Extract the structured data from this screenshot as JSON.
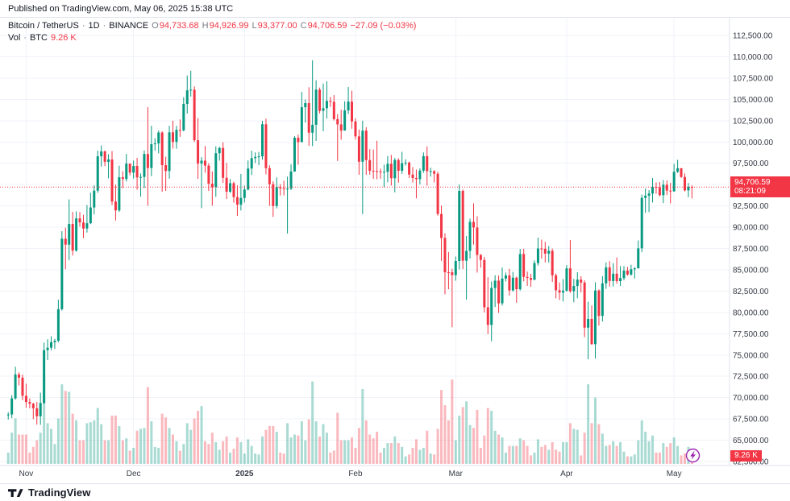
{
  "published_bar": {
    "text": "Published on TradingView.com, May 06, 2025 15:38 UTC"
  },
  "legend": {
    "symbol": "Bitcoin / TetherUS",
    "interval": "1D",
    "exchange": "BINANCE",
    "sep": "·",
    "ohlc": [
      {
        "label": "O",
        "value": "94,733.68"
      },
      {
        "label": "H",
        "value": "94,926.99"
      },
      {
        "label": "L",
        "value": "93,377.00"
      },
      {
        "label": "C",
        "value": "94,706.59"
      }
    ],
    "change": "−27.09 (−0.03%)",
    "vol_label": "Vol",
    "vol_unit": "BTC",
    "vol_value": "9.26 K"
  },
  "price_label": {
    "price": "94,706.59",
    "countdown": "08:21:09"
  },
  "volume_label": {
    "text": "9.26 K"
  },
  "footer": {
    "brand": "TradingView"
  },
  "icons": {
    "realtime": "lightning-icon",
    "brand": "tradingview-mark"
  },
  "colors": {
    "up": "#089981",
    "down": "#f23645",
    "vol_up": "rgba(8,153,129,0.35)",
    "vol_down": "rgba(242,54,69,0.35)",
    "grid": "#f0f3fa",
    "border": "#e0e3eb",
    "text": "#131722",
    "muted": "#787b86",
    "axis_text": "#363a45",
    "realtime": "#9c27b0"
  },
  "chart_data": {
    "type": "candlestick",
    "title": "Bitcoin / TetherUS, 1D, BINANCE",
    "legend_note": "volume pane overlaid at bottom, units K BTC",
    "price_range": [
      62500,
      112500
    ],
    "right_gap_bars": 10,
    "price_axis": {
      "step": 2500,
      "labels": [
        "112,500.00",
        "110,000.00",
        "107,500.00",
        "105,000.00",
        "102,500.00",
        "100,000.00",
        "97,500.00",
        "95,000.00",
        "92,500.00",
        "90,000.00",
        "87,500.00",
        "85,000.00",
        "82,500.00",
        "80,000.00",
        "77,500.00",
        "75,000.00",
        "72,500.00",
        "70,000.00",
        "67,500.00",
        "65,000.00",
        "62,500.00"
      ]
    },
    "time_axis": {
      "labels": [
        {
          "text": "Nov",
          "index": 5
        },
        {
          "text": "Dec",
          "index": 35
        },
        {
          "text": "2025",
          "index": 66,
          "bold": true
        },
        {
          "text": "Feb",
          "index": 97
        },
        {
          "text": "Mar",
          "index": 125
        },
        {
          "text": "Apr",
          "index": 156
        },
        {
          "text": "May",
          "index": 186
        }
      ]
    },
    "last": {
      "open": 94733.68,
      "high": 94926.99,
      "low": 93377.0,
      "close": 94706.59,
      "change": -27.09,
      "change_pct": -0.03,
      "volume_k_btc": 9.26
    },
    "candles_format": [
      "open",
      "high",
      "low",
      "close",
      "volume_k_btc"
    ],
    "candles": [
      [
        67929,
        68300,
        67440,
        68021,
        12
      ],
      [
        68021,
        70288,
        67589,
        69910,
        33
      ],
      [
        69910,
        73620,
        69750,
        72720,
        48
      ],
      [
        72720,
        72963,
        71436,
        72339,
        31
      ],
      [
        72339,
        72700,
        69686,
        70215,
        31
      ],
      [
        70215,
        71632,
        68820,
        69482,
        31
      ],
      [
        69482,
        69914,
        68750,
        69289,
        12
      ],
      [
        69289,
        69390,
        67478,
        68741,
        18
      ],
      [
        68741,
        69500,
        66835,
        67811,
        25
      ],
      [
        67811,
        70577,
        66803,
        69372,
        33
      ],
      [
        69372,
        76460,
        69280,
        75571,
        96
      ],
      [
        75571,
        76849,
        74416,
        75857,
        43
      ],
      [
        75857,
        77199,
        75555,
        76509,
        37
      ],
      [
        76509,
        76900,
        75714,
        76677,
        21
      ],
      [
        76677,
        81500,
        76492,
        80370,
        48
      ],
      [
        80370,
        89530,
        80216,
        88647,
        84
      ],
      [
        88647,
        89940,
        85072,
        87952,
        77
      ],
      [
        87952,
        93265,
        86141,
        90375,
        76
      ],
      [
        90375,
        91790,
        86668,
        87250,
        53
      ],
      [
        87250,
        91850,
        87120,
        91032,
        46
      ],
      [
        91032,
        91775,
        90056,
        90558,
        25
      ],
      [
        90558,
        91449,
        88722,
        89845,
        25
      ],
      [
        89845,
        92594,
        89376,
        90464,
        43
      ],
      [
        90464,
        94050,
        90363,
        92310,
        44
      ],
      [
        92310,
        94905,
        91500,
        94286,
        46
      ],
      [
        94286,
        98988,
        94040,
        98317,
        59
      ],
      [
        98317,
        99588,
        97122,
        98892,
        42
      ],
      [
        98892,
        99000,
        97168,
        97672,
        25
      ],
      [
        97672,
        98564,
        95734,
        97942,
        25
      ],
      [
        97942,
        98935,
        92600,
        93010,
        51
      ],
      [
        93010,
        94980,
        90791,
        91965,
        51
      ],
      [
        91965,
        97219,
        91790,
        95863,
        40
      ],
      [
        95863,
        96570,
        94590,
        95652,
        25
      ],
      [
        95652,
        98599,
        95364,
        97460,
        27
      ],
      [
        97460,
        97463,
        96086,
        96405,
        14
      ],
      [
        96405,
        97813,
        95712,
        97185,
        17
      ],
      [
        97185,
        98130,
        94395,
        95840,
        35
      ],
      [
        95840,
        96305,
        93578,
        95896,
        37
      ],
      [
        95896,
        99000,
        94587,
        98587,
        38
      ],
      [
        98587,
        104088,
        92510,
        96945,
        81
      ],
      [
        96945,
        101898,
        95987,
        99740,
        45
      ],
      [
        99740,
        100439,
        98966,
        99831,
        18
      ],
      [
        99831,
        101351,
        98657,
        101109,
        17
      ],
      [
        101109,
        101245,
        94150,
        97276,
        53
      ],
      [
        97276,
        98270,
        94256,
        96593,
        49
      ],
      [
        96593,
        101888,
        95689,
        101126,
        38
      ],
      [
        101126,
        102495,
        99225,
        100004,
        31
      ],
      [
        100004,
        101895,
        99210,
        101417,
        24
      ],
      [
        101417,
        102650,
        100609,
        101372,
        14
      ],
      [
        101372,
        105250,
        101234,
        104463,
        21
      ],
      [
        104463,
        107793,
        103333,
        106058,
        43
      ],
      [
        106058,
        108364,
        105321,
        106133,
        36
      ],
      [
        106133,
        106524,
        100000,
        100204,
        48
      ],
      [
        100204,
        102800,
        95672,
        97461,
        56
      ],
      [
        97461,
        98233,
        92232,
        97805,
        61
      ],
      [
        97805,
        99540,
        96398,
        97224,
        24
      ],
      [
        97224,
        97500,
        94250,
        95104,
        21
      ],
      [
        95104,
        96538,
        92520,
        94686,
        33
      ],
      [
        94686,
        99488,
        93568,
        98676,
        23
      ],
      [
        98676,
        99440,
        97813,
        99299,
        15
      ],
      [
        99299,
        99963,
        95199,
        95795,
        24
      ],
      [
        95795,
        97544,
        93310,
        94164,
        29
      ],
      [
        94164,
        95650,
        94014,
        95163,
        12
      ],
      [
        95163,
        95340,
        92880,
        93530,
        16
      ],
      [
        93530,
        94900,
        91317,
        92643,
        28
      ],
      [
        92643,
        96250,
        91955,
        93429,
        23
      ],
      [
        93429,
        94887,
        92888,
        94419,
        11
      ],
      [
        94419,
        97839,
        94310,
        96886,
        26
      ],
      [
        96886,
        98976,
        96111,
        98107,
        19
      ],
      [
        98107,
        98778,
        97538,
        98236,
        11
      ],
      [
        98236,
        98827,
        97276,
        98314,
        10
      ],
      [
        98314,
        102480,
        97920,
        102078,
        29
      ],
      [
        102078,
        102724,
        96200,
        96922,
        36
      ],
      [
        96922,
        97268,
        92500,
        95043,
        40
      ],
      [
        95043,
        95382,
        91203,
        92484,
        40
      ],
      [
        92484,
        95836,
        92206,
        94701,
        34
      ],
      [
        94701,
        95050,
        93711,
        94566,
        12
      ],
      [
        94566,
        95450,
        93726,
        94488,
        11
      ],
      [
        94488,
        95940,
        89256,
        94516,
        43
      ],
      [
        94516,
        97371,
        94346,
        96534,
        28
      ],
      [
        96534,
        100681,
        96500,
        100497,
        31
      ],
      [
        100497,
        100866,
        97335,
        99987,
        30
      ],
      [
        99987,
        105865,
        99950,
        104077,
        45
      ],
      [
        104077,
        104987,
        102277,
        104556,
        25
      ],
      [
        104556,
        106422,
        99550,
        101089,
        47
      ],
      [
        101089,
        109588,
        99514,
        102016,
        87
      ],
      [
        102016,
        107240,
        100120,
        106146,
        45
      ],
      [
        106146,
        106387,
        103340,
        103653,
        29
      ],
      [
        103653,
        106850,
        101262,
        103960,
        42
      ],
      [
        103960,
        107120,
        102750,
        104819,
        33
      ],
      [
        104819,
        105283,
        104110,
        104714,
        12
      ],
      [
        104714,
        105500,
        102520,
        102682,
        14
      ],
      [
        102682,
        103260,
        97777,
        102062,
        54
      ],
      [
        102062,
        103782,
        100272,
        101335,
        25
      ],
      [
        101335,
        104782,
        101328,
        103703,
        25
      ],
      [
        103703,
        106457,
        103278,
        104735,
        25
      ],
      [
        104735,
        106012,
        101560,
        102405,
        28
      ],
      [
        102405,
        102783,
        100279,
        100655,
        17
      ],
      [
        100655,
        101456,
        96150,
        97688,
        38
      ],
      [
        97688,
        102500,
        91530,
        101328,
        79
      ],
      [
        101328,
        101732,
        96150,
        97871,
        46
      ],
      [
        97871,
        99149,
        96155,
        96615,
        31
      ],
      [
        96615,
        99120,
        95676,
        96593,
        27
      ],
      [
        96593,
        100138,
        95618,
        96529,
        34
      ],
      [
        96529,
        96880,
        95688,
        96482,
        12
      ],
      [
        96482,
        97324,
        94713,
        96500,
        17
      ],
      [
        96500,
        98345,
        95256,
        97437,
        22
      ],
      [
        97437,
        98478,
        94876,
        95747,
        22
      ],
      [
        95747,
        98120,
        94088,
        97885,
        29
      ],
      [
        97885,
        98083,
        95217,
        96623,
        22
      ],
      [
        96623,
        98842,
        96252,
        97508,
        18
      ],
      [
        97508,
        97972,
        97224,
        97580,
        8
      ],
      [
        97580,
        97704,
        95772,
        96175,
        10
      ],
      [
        96175,
        97046,
        95235,
        95773,
        17
      ],
      [
        95773,
        96753,
        93388,
        95639,
        26
      ],
      [
        95639,
        96899,
        95029,
        96635,
        15
      ],
      [
        96635,
        98769,
        96377,
        98333,
        17
      ],
      [
        98333,
        99475,
        94871,
        96577,
        35
      ],
      [
        96577,
        96990,
        95930,
        96577,
        11
      ],
      [
        96577,
        96676,
        95261,
        96273,
        10
      ],
      [
        96273,
        96500,
        91349,
        91552,
        37
      ],
      [
        91552,
        92540,
        86050,
        88736,
        78
      ],
      [
        88736,
        89286,
        82131,
        84709,
        62
      ],
      [
        84709,
        87078,
        82716,
        84705,
        46
      ],
      [
        84705,
        85120,
        78258,
        84373,
        89
      ],
      [
        84373,
        86558,
        83717,
        86031,
        25
      ],
      [
        86031,
        95000,
        85040,
        94261,
        51
      ],
      [
        94261,
        94416,
        85081,
        86065,
        60
      ],
      [
        86065,
        88967,
        81500,
        87222,
        66
      ],
      [
        87222,
        91000,
        86334,
        90623,
        41
      ],
      [
        90623,
        92810,
        87944,
        89961,
        38
      ],
      [
        89961,
        91283,
        84667,
        86742,
        57
      ],
      [
        86742,
        86847,
        85247,
        86154,
        17
      ],
      [
        86154,
        86500,
        80000,
        80601,
        30
      ],
      [
        80601,
        84123,
        77459,
        78532,
        59
      ],
      [
        78532,
        83617,
        76606,
        82862,
        56
      ],
      [
        82862,
        84358,
        80635,
        83722,
        35
      ],
      [
        83722,
        84336,
        79939,
        81066,
        31
      ],
      [
        81066,
        85263,
        80818,
        83969,
        28
      ],
      [
        83969,
        84676,
        83618,
        84343,
        12
      ],
      [
        84343,
        85117,
        81981,
        82579,
        19
      ],
      [
        82579,
        84756,
        82436,
        84075,
        19
      ],
      [
        84075,
        84200,
        81134,
        82718,
        19
      ],
      [
        82718,
        87453,
        82550,
        86854,
        27
      ],
      [
        86854,
        87470,
        83647,
        84167,
        25
      ],
      [
        84167,
        84792,
        83113,
        84043,
        19
      ],
      [
        84043,
        84522,
        83000,
        83820,
        9
      ],
      [
        83820,
        86100,
        83795,
        85787,
        12
      ],
      [
        85787,
        88772,
        85495,
        87498,
        26
      ],
      [
        87498,
        88543,
        86322,
        87471,
        18
      ],
      [
        87471,
        88289,
        85861,
        86900,
        20
      ],
      [
        86900,
        87786,
        85853,
        87227,
        15
      ],
      [
        87227,
        87489,
        83580,
        84353,
        23
      ],
      [
        84353,
        84575,
        81644,
        82597,
        15
      ],
      [
        82597,
        83506,
        81461,
        82334,
        13
      ],
      [
        82334,
        83918,
        81278,
        82548,
        23
      ],
      [
        82548,
        85559,
        82424,
        85169,
        23
      ],
      [
        85169,
        88500,
        82298,
        82485,
        43
      ],
      [
        82485,
        83930,
        81189,
        83102,
        37
      ],
      [
        83102,
        84720,
        81659,
        83843,
        36
      ],
      [
        83843,
        84242,
        82350,
        83504,
        9
      ],
      [
        83504,
        83769,
        77097,
        78214,
        33
      ],
      [
        78214,
        81243,
        74508,
        79235,
        84
      ],
      [
        79235,
        80820,
        76198,
        76271,
        43
      ],
      [
        76271,
        83541,
        74589,
        82573,
        70
      ],
      [
        82573,
        82700,
        78456,
        79591,
        42
      ],
      [
        79591,
        84247,
        78936,
        83404,
        32
      ],
      [
        83404,
        85856,
        82769,
        85287,
        19
      ],
      [
        85287,
        86015,
        83027,
        83684,
        20
      ],
      [
        83684,
        85785,
        83034,
        84542,
        24
      ],
      [
        84542,
        86450,
        83368,
        83668,
        19
      ],
      [
        83668,
        85436,
        83100,
        84033,
        23
      ],
      [
        84033,
        85428,
        83765,
        84895,
        13
      ],
      [
        84895,
        85329,
        84298,
        84450,
        8
      ],
      [
        84450,
        85595,
        84298,
        85063,
        8
      ],
      [
        85063,
        85306,
        83976,
        85174,
        10
      ],
      [
        85174,
        88447,
        85143,
        87518,
        25
      ],
      [
        87518,
        93817,
        87060,
        93441,
        46
      ],
      [
        93441,
        94535,
        91697,
        93699,
        34
      ],
      [
        93699,
        94350,
        91770,
        93943,
        24
      ],
      [
        93943,
        95768,
        92898,
        94720,
        30
      ],
      [
        94720,
        95251,
        93927,
        94646,
        12
      ],
      [
        94646,
        95301,
        93622,
        93754,
        12
      ],
      [
        93754,
        95532,
        92830,
        94978,
        22
      ],
      [
        94978,
        95490,
        93794,
        94284,
        18
      ],
      [
        94284,
        95200,
        92792,
        94207,
        22
      ],
      [
        94207,
        97437,
        94153,
        96494,
        28
      ],
      [
        96494,
        97905,
        96369,
        96910,
        19
      ],
      [
        96910,
        96938,
        95784,
        95891,
        9
      ],
      [
        95891,
        96319,
        94190,
        94315,
        11
      ],
      [
        94315,
        95193,
        93520,
        94748,
        18
      ],
      [
        94733.68,
        94926.99,
        93377,
        94706.59,
        9.26
      ]
    ]
  }
}
